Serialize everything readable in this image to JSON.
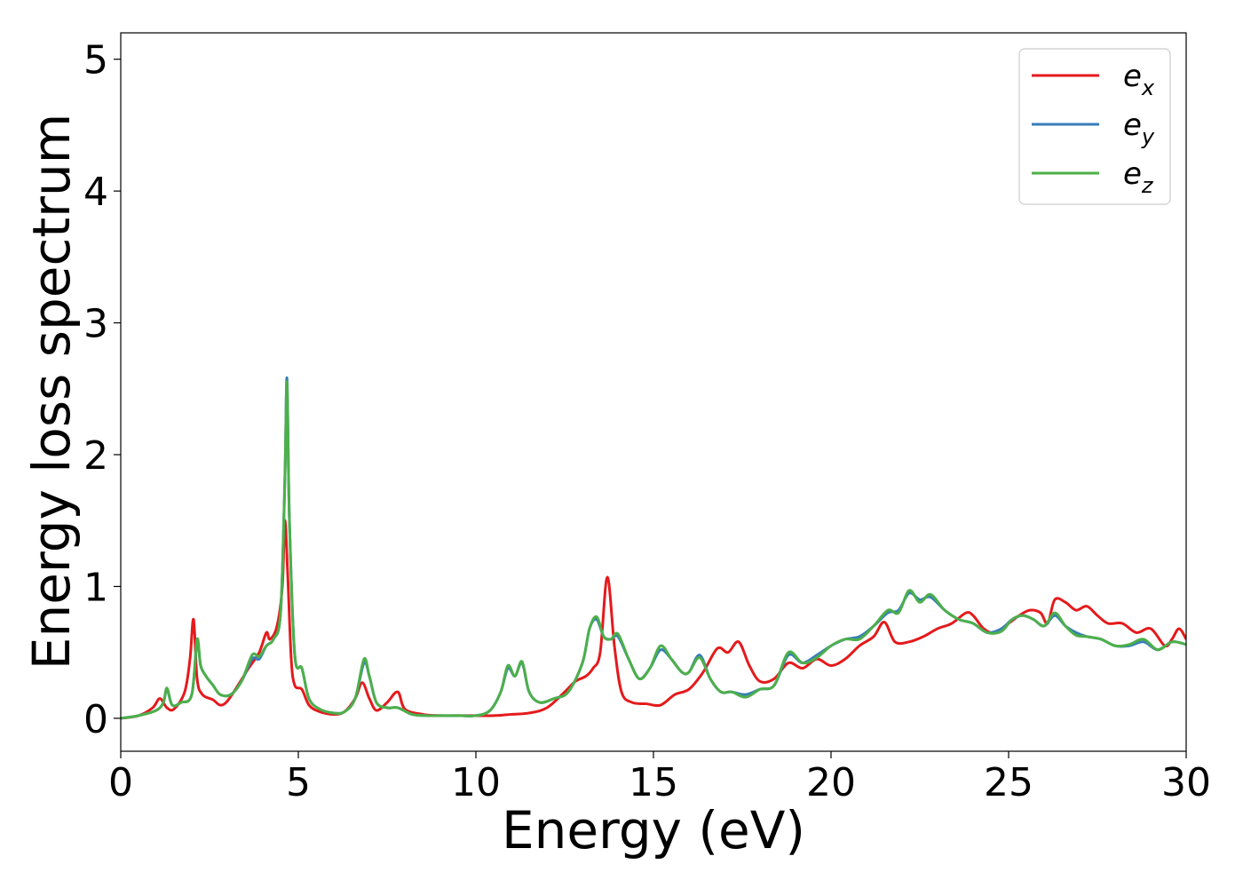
{
  "chart_data": {
    "type": "line",
    "title": "",
    "xlabel": "Energy (eV)",
    "ylabel": "Energy loss spectrum",
    "xlim": [
      0,
      30
    ],
    "ylim": [
      -0.25,
      5.2
    ],
    "xticks": [
      0,
      5,
      10,
      15,
      20,
      25,
      30
    ],
    "yticks": [
      0,
      1,
      2,
      3,
      4,
      5
    ],
    "grid": false,
    "legend_position": "top-right",
    "series": [
      {
        "name": "e_x",
        "label_base": "e",
        "label_sub": "x",
        "color": "#e41a1c",
        "x": [
          0,
          0.5,
          0.9,
          1.1,
          1.3,
          1.5,
          1.8,
          1.95,
          2.05,
          2.15,
          2.3,
          2.6,
          2.8,
          3.0,
          3.3,
          3.6,
          3.9,
          4.1,
          4.2,
          4.4,
          4.55,
          4.62,
          4.7,
          4.8,
          4.9,
          5.1,
          5.3,
          5.6,
          6.0,
          6.3,
          6.6,
          6.8,
          7.0,
          7.2,
          7.5,
          7.8,
          8.0,
          8.5,
          9.0,
          9.5,
          10.0,
          10.5,
          11.0,
          11.5,
          12.0,
          12.5,
          12.8,
          13.1,
          13.3,
          13.5,
          13.7,
          13.9,
          14.1,
          14.4,
          14.8,
          15.2,
          15.6,
          16.0,
          16.4,
          16.8,
          17.1,
          17.4,
          17.7,
          18.0,
          18.4,
          18.8,
          19.2,
          19.6,
          20.0,
          20.4,
          20.8,
          21.2,
          21.5,
          21.8,
          22.2,
          22.6,
          23.0,
          23.4,
          23.8,
          24.0,
          24.3,
          24.6,
          25.0,
          25.3,
          25.6,
          25.9,
          26.1,
          26.3,
          26.6,
          26.9,
          27.2,
          27.5,
          27.8,
          28.2,
          28.6,
          29.0,
          29.4,
          29.6,
          29.8,
          30.0
        ],
        "y": [
          0,
          0.02,
          0.08,
          0.15,
          0.08,
          0.07,
          0.2,
          0.45,
          0.75,
          0.3,
          0.18,
          0.14,
          0.1,
          0.13,
          0.25,
          0.38,
          0.5,
          0.65,
          0.6,
          0.7,
          1.0,
          1.5,
          1.1,
          0.45,
          0.25,
          0.22,
          0.1,
          0.05,
          0.03,
          0.05,
          0.15,
          0.27,
          0.15,
          0.06,
          0.12,
          0.2,
          0.07,
          0.03,
          0.02,
          0.02,
          0.02,
          0.02,
          0.03,
          0.04,
          0.08,
          0.2,
          0.28,
          0.32,
          0.38,
          0.5,
          1.07,
          0.55,
          0.2,
          0.12,
          0.11,
          0.1,
          0.18,
          0.22,
          0.35,
          0.53,
          0.5,
          0.58,
          0.4,
          0.28,
          0.3,
          0.42,
          0.38,
          0.45,
          0.4,
          0.45,
          0.55,
          0.62,
          0.73,
          0.58,
          0.58,
          0.62,
          0.68,
          0.72,
          0.8,
          0.78,
          0.68,
          0.65,
          0.72,
          0.78,
          0.82,
          0.8,
          0.72,
          0.9,
          0.88,
          0.82,
          0.85,
          0.78,
          0.72,
          0.72,
          0.65,
          0.68,
          0.55,
          0.6,
          0.68,
          0.6
        ]
      },
      {
        "name": "e_y",
        "label_base": "e",
        "label_sub": "y",
        "color": "#377eb8",
        "x": [
          0,
          0.5,
          1.0,
          1.2,
          1.3,
          1.45,
          1.7,
          2.0,
          2.15,
          2.25,
          2.4,
          2.6,
          2.8,
          3.1,
          3.4,
          3.7,
          3.9,
          4.1,
          4.3,
          4.5,
          4.62,
          4.68,
          4.75,
          4.9,
          5.1,
          5.3,
          5.6,
          6.0,
          6.3,
          6.6,
          6.85,
          7.0,
          7.2,
          7.5,
          7.8,
          8.2,
          8.6,
          9.0,
          9.5,
          10.0,
          10.4,
          10.7,
          10.9,
          11.1,
          11.3,
          11.5,
          11.8,
          12.2,
          12.6,
          13.0,
          13.2,
          13.4,
          13.6,
          13.8,
          14.0,
          14.3,
          14.6,
          14.9,
          15.2,
          15.5,
          15.8,
          16.0,
          16.3,
          16.6,
          16.9,
          17.2,
          17.6,
          18.0,
          18.4,
          18.8,
          19.2,
          19.6,
          20.0,
          20.4,
          20.8,
          21.2,
          21.6,
          21.9,
          22.2,
          22.5,
          22.8,
          23.2,
          23.6,
          24.0,
          24.4,
          24.8,
          25.1,
          25.4,
          25.7,
          26.0,
          26.3,
          26.6,
          26.9,
          27.2,
          27.6,
          28.0,
          28.4,
          28.8,
          29.2,
          29.6,
          30.0
        ],
        "y": [
          0,
          0.02,
          0.06,
          0.12,
          0.22,
          0.1,
          0.12,
          0.18,
          0.58,
          0.4,
          0.32,
          0.25,
          0.18,
          0.18,
          0.28,
          0.45,
          0.45,
          0.55,
          0.6,
          0.8,
          1.8,
          2.58,
          1.5,
          0.48,
          0.38,
          0.15,
          0.07,
          0.04,
          0.05,
          0.15,
          0.42,
          0.32,
          0.12,
          0.08,
          0.08,
          0.03,
          0.02,
          0.02,
          0.02,
          0.02,
          0.06,
          0.2,
          0.38,
          0.32,
          0.42,
          0.2,
          0.12,
          0.15,
          0.2,
          0.42,
          0.68,
          0.75,
          0.62,
          0.6,
          0.62,
          0.45,
          0.3,
          0.38,
          0.52,
          0.45,
          0.35,
          0.35,
          0.48,
          0.3,
          0.2,
          0.2,
          0.18,
          0.22,
          0.25,
          0.48,
          0.42,
          0.48,
          0.55,
          0.6,
          0.62,
          0.7,
          0.8,
          0.82,
          0.95,
          0.9,
          0.92,
          0.82,
          0.75,
          0.72,
          0.65,
          0.68,
          0.75,
          0.78,
          0.75,
          0.7,
          0.78,
          0.7,
          0.65,
          0.62,
          0.6,
          0.55,
          0.55,
          0.58,
          0.52,
          0.58,
          0.56
        ]
      },
      {
        "name": "e_z",
        "label_base": "e",
        "label_sub": "z",
        "color": "#4daf4a",
        "x": [
          0,
          0.5,
          1.0,
          1.2,
          1.3,
          1.45,
          1.7,
          2.0,
          2.15,
          2.25,
          2.4,
          2.6,
          2.8,
          3.1,
          3.4,
          3.7,
          3.9,
          4.1,
          4.3,
          4.5,
          4.62,
          4.68,
          4.75,
          4.9,
          5.1,
          5.3,
          5.6,
          6.0,
          6.3,
          6.6,
          6.85,
          7.0,
          7.2,
          7.5,
          7.8,
          8.2,
          8.6,
          9.0,
          9.5,
          10.0,
          10.4,
          10.7,
          10.9,
          11.1,
          11.3,
          11.5,
          11.8,
          12.2,
          12.6,
          13.0,
          13.2,
          13.4,
          13.6,
          13.8,
          14.0,
          14.3,
          14.6,
          14.9,
          15.2,
          15.5,
          15.8,
          16.0,
          16.3,
          16.6,
          16.9,
          17.2,
          17.6,
          18.0,
          18.4,
          18.8,
          19.2,
          19.6,
          20.0,
          20.4,
          20.8,
          21.2,
          21.6,
          21.9,
          22.2,
          22.5,
          22.8,
          23.2,
          23.6,
          24.0,
          24.4,
          24.8,
          25.1,
          25.4,
          25.7,
          26.0,
          26.3,
          26.6,
          26.9,
          27.2,
          27.6,
          28.0,
          28.4,
          28.8,
          29.2,
          29.6,
          30.0
        ],
        "y": [
          0,
          0.02,
          0.06,
          0.12,
          0.23,
          0.1,
          0.12,
          0.18,
          0.6,
          0.4,
          0.32,
          0.25,
          0.18,
          0.18,
          0.28,
          0.48,
          0.47,
          0.55,
          0.6,
          0.8,
          1.8,
          2.55,
          1.5,
          0.48,
          0.38,
          0.15,
          0.07,
          0.04,
          0.05,
          0.15,
          0.45,
          0.32,
          0.12,
          0.08,
          0.08,
          0.03,
          0.02,
          0.02,
          0.02,
          0.02,
          0.06,
          0.2,
          0.4,
          0.32,
          0.43,
          0.2,
          0.12,
          0.15,
          0.2,
          0.42,
          0.68,
          0.77,
          0.62,
          0.6,
          0.64,
          0.45,
          0.3,
          0.38,
          0.55,
          0.45,
          0.35,
          0.35,
          0.46,
          0.3,
          0.2,
          0.2,
          0.16,
          0.22,
          0.25,
          0.5,
          0.42,
          0.46,
          0.55,
          0.6,
          0.6,
          0.7,
          0.82,
          0.8,
          0.97,
          0.88,
          0.94,
          0.82,
          0.75,
          0.72,
          0.65,
          0.66,
          0.75,
          0.78,
          0.75,
          0.7,
          0.8,
          0.7,
          0.63,
          0.62,
          0.6,
          0.55,
          0.56,
          0.6,
          0.52,
          0.58,
          0.56
        ]
      }
    ]
  }
}
